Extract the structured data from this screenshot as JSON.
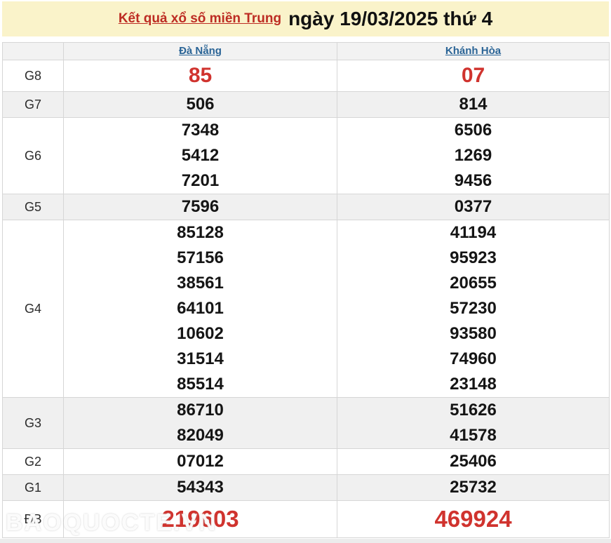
{
  "banner": {
    "title_link": "Kết quả xổ số miền Trung",
    "title_date": "ngày 19/03/2025 thứ 4"
  },
  "table": {
    "columns": [
      "Đà Nẵng",
      "Khánh Hòa"
    ],
    "rows": [
      {
        "label": "G8",
        "shade": false,
        "highlight": true,
        "size": "big",
        "values": [
          [
            "85"
          ],
          [
            "07"
          ]
        ]
      },
      {
        "label": "G7",
        "shade": true,
        "highlight": false,
        "values": [
          [
            "506"
          ],
          [
            "814"
          ]
        ]
      },
      {
        "label": "G6",
        "shade": false,
        "highlight": false,
        "values": [
          [
            "7348",
            "5412",
            "7201"
          ],
          [
            "6506",
            "1269",
            "9456"
          ]
        ]
      },
      {
        "label": "G5",
        "shade": true,
        "highlight": false,
        "values": [
          [
            "7596"
          ],
          [
            "0377"
          ]
        ]
      },
      {
        "label": "G4",
        "shade": false,
        "highlight": false,
        "values": [
          [
            "85128",
            "57156",
            "38561",
            "64101",
            "10602",
            "31514",
            "85514"
          ],
          [
            "41194",
            "95923",
            "20655",
            "57230",
            "93580",
            "74960",
            "23148"
          ]
        ]
      },
      {
        "label": "G3",
        "shade": true,
        "highlight": false,
        "values": [
          [
            "86710",
            "82049"
          ],
          [
            "51626",
            "41578"
          ]
        ]
      },
      {
        "label": "G2",
        "shade": false,
        "highlight": false,
        "values": [
          [
            "07012"
          ],
          [
            "25406"
          ]
        ]
      },
      {
        "label": "G1",
        "shade": true,
        "highlight": false,
        "values": [
          [
            "54343"
          ],
          [
            "25732"
          ]
        ]
      },
      {
        "label": "ĐB",
        "shade": false,
        "highlight": true,
        "size": "huge",
        "values": [
          [
            "219603"
          ],
          [
            "469924"
          ]
        ]
      }
    ]
  },
  "watermark": "BAOQUOCTE.VN",
  "colors": {
    "banner_bg": "#FAF3CA",
    "title_red": "#BD2C23",
    "number_red": "#D0332E",
    "header_blue": "#2A6496",
    "shade_gray": "#F0F0F0",
    "border_gray": "#D6D6D6"
  }
}
